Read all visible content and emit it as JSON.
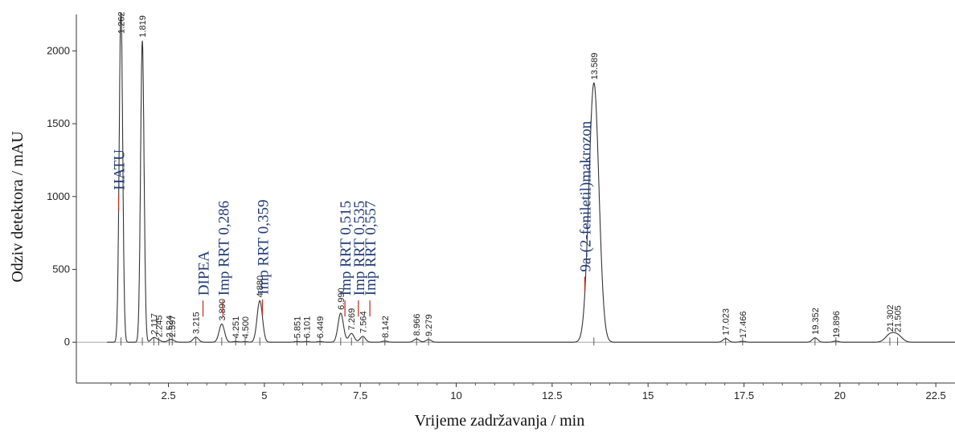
{
  "chart_data": {
    "type": "line",
    "xlabel": "Vrijeme zadržavanja / min",
    "ylabel": "Odziv detektora / mAU",
    "xlim": [
      0.1,
      23.0
    ],
    "ylim": [
      -280,
      2250
    ],
    "x_ticks": [
      2.5,
      5,
      7.5,
      10,
      12.5,
      15,
      17.5,
      20,
      22.5
    ],
    "y_ticks": [
      0,
      500,
      1000,
      1500,
      2000
    ],
    "x_tick_labels": [
      "2.5",
      "5",
      "7.5",
      "10",
      "12.5",
      "15",
      "17.5",
      "20",
      "22.5"
    ],
    "y_tick_labels": [
      "0",
      "500",
      "1000",
      "1500",
      "2000"
    ],
    "grid": false,
    "series": [
      {
        "peaks": [
          {
            "rt": 1.262,
            "label": "1.262",
            "height": 2300
          },
          {
            "rt": 1.819,
            "label": "1.819",
            "height": 2070
          },
          {
            "rt": 2.117,
            "label": "2.117",
            "height": 30
          },
          {
            "rt": 2.245,
            "label": "2.245",
            "height": 12
          },
          {
            "rt": 2.524,
            "label": "2.524",
            "height": 10
          },
          {
            "rt": 2.597,
            "label": "2.597",
            "height": 12
          },
          {
            "rt": 3.215,
            "label": "3.215",
            "height": 35
          },
          {
            "rt": 3.89,
            "label": "3.890",
            "height": 125
          },
          {
            "rt": 4.251,
            "label": "4.251",
            "height": 5
          },
          {
            "rt": 4.5,
            "label": "4.500",
            "height": 4
          },
          {
            "rt": 4.88,
            "label": "4.880",
            "height": 285
          },
          {
            "rt": 5.851,
            "label": "5.851",
            "height": 5
          },
          {
            "rt": 6.101,
            "label": "6.101",
            "height": 5
          },
          {
            "rt": 6.449,
            "label": "6.449",
            "height": 5
          },
          {
            "rt": 6.99,
            "label": "6.990",
            "height": 200
          },
          {
            "rt": 7.269,
            "label": "7.269",
            "height": 60
          },
          {
            "rt": 7.564,
            "label": "7.564",
            "height": 40
          },
          {
            "rt": 8.142,
            "label": "8.142",
            "height": 8
          },
          {
            "rt": 8.966,
            "label": "8.966",
            "height": 22
          },
          {
            "rt": 9.279,
            "label": "9.279",
            "height": 18
          },
          {
            "rt": 13.589,
            "label": "13.589",
            "height": 1780
          },
          {
            "rt": 17.023,
            "label": "17.023",
            "height": 25
          },
          {
            "rt": 17.466,
            "label": "17.466",
            "height": 6
          },
          {
            "rt": 19.352,
            "label": "19.352",
            "height": 30
          },
          {
            "rt": 19.896,
            "label": "19.896",
            "height": 8
          },
          {
            "rt": 21.302,
            "label": "21.302",
            "height": 50
          },
          {
            "rt": 21.505,
            "label": "21.505",
            "height": 45
          }
        ]
      }
    ],
    "annotations": [
      {
        "text": "HATU",
        "x": 1.2
      },
      {
        "text": "DIPEA",
        "x": 3.4
      },
      {
        "text": "Imp RRT 0,286",
        "x": 3.92
      },
      {
        "text": "Imp RRT 0,359",
        "x": 4.95
      },
      {
        "text": "Imp RRT 0,515",
        "x": 7.1
      },
      {
        "text": "Imp RRT 0,535",
        "x": 7.45
      },
      {
        "text": "Imp RRT 0,557",
        "x": 7.75
      },
      {
        "text": "9a-(2-feniletil)makrozon",
        "x": 13.35
      }
    ]
  }
}
